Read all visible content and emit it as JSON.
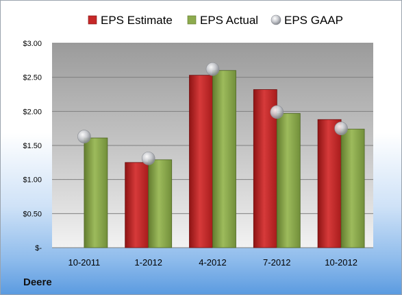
{
  "company": "Deere",
  "colors": {
    "estimate": "#c62828",
    "actual": "#8dab4e",
    "gaap": "#b9bcc2"
  },
  "chart_data": {
    "type": "bar",
    "categories": [
      "10-2011",
      "1-2012",
      "4-2012",
      "7-2012",
      "10-2012"
    ],
    "series": [
      {
        "name": "EPS Estimate",
        "values": [
          null,
          1.25,
          2.53,
          2.32,
          1.88
        ]
      },
      {
        "name": "EPS Actual",
        "values": [
          1.61,
          1.29,
          2.6,
          1.97,
          1.74
        ]
      },
      {
        "name": "EPS GAAP",
        "marker": "bubble",
        "values": [
          1.63,
          1.31,
          2.62,
          1.99,
          1.75
        ]
      }
    ],
    "ylim": [
      0,
      3
    ],
    "yticks": [
      0,
      0.5,
      1,
      1.5,
      2,
      2.5,
      3
    ],
    "ytick_labels": [
      "$-",
      "$0.50",
      "$1.00",
      "$1.50",
      "$2.00",
      "$2.50",
      "$3.00"
    ],
    "legend_position": "top",
    "grid": true
  }
}
